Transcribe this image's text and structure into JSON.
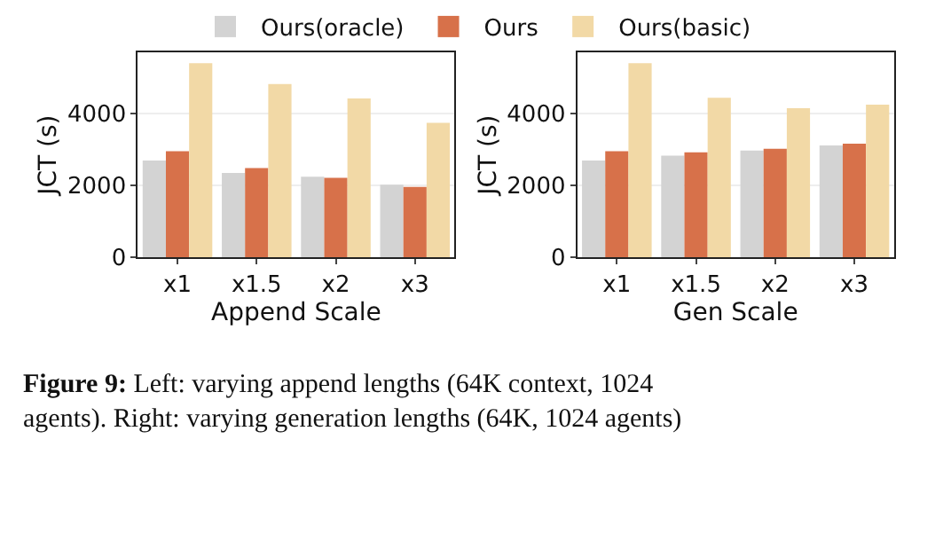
{
  "chart_data": [
    {
      "type": "bar",
      "xlabel": "Append Scale",
      "ylabel": "JCT (s)",
      "categories": [
        "x1",
        "x1.5",
        "x2",
        "x3"
      ],
      "series": [
        {
          "name": "Ours(oracle)",
          "color": "#d3d3d3",
          "values": [
            2690,
            2350,
            2240,
            2020
          ]
        },
        {
          "name": "Ours",
          "color": "#d7714a",
          "values": [
            2950,
            2480,
            2210,
            1960
          ]
        },
        {
          "name": "Ours(basic)",
          "color": "#f2d9a6",
          "values": [
            5400,
            4820,
            4420,
            3740
          ]
        }
      ],
      "ylim": [
        0,
        5700
      ],
      "yticks": [
        0,
        2000,
        4000
      ],
      "grid": "y",
      "legend": "top",
      "annotations": [
        "Figure 9: Left: varying append lengths (64K context, 1024 agents). Right: varying generation lengths (64K, 1024 agents)"
      ]
    },
    {
      "type": "bar",
      "xlabel": "Gen Scale",
      "ylabel": "JCT (s)",
      "categories": [
        "x1",
        "x1.5",
        "x2",
        "x3"
      ],
      "series": [
        {
          "color": "#d3d3d3",
          "values": [
            2690,
            2830,
            2970,
            3110
          ]
        },
        {
          "color": "#d7714a",
          "values": [
            2950,
            2920,
            3020,
            3160
          ]
        },
        {
          "color": "#f2d9a6",
          "values": [
            5400,
            4440,
            4150,
            4250
          ]
        }
      ],
      "ylim": [
        0,
        5700
      ],
      "yticks": [
        0,
        2000,
        4000
      ],
      "grid": "y"
    }
  ]
}
